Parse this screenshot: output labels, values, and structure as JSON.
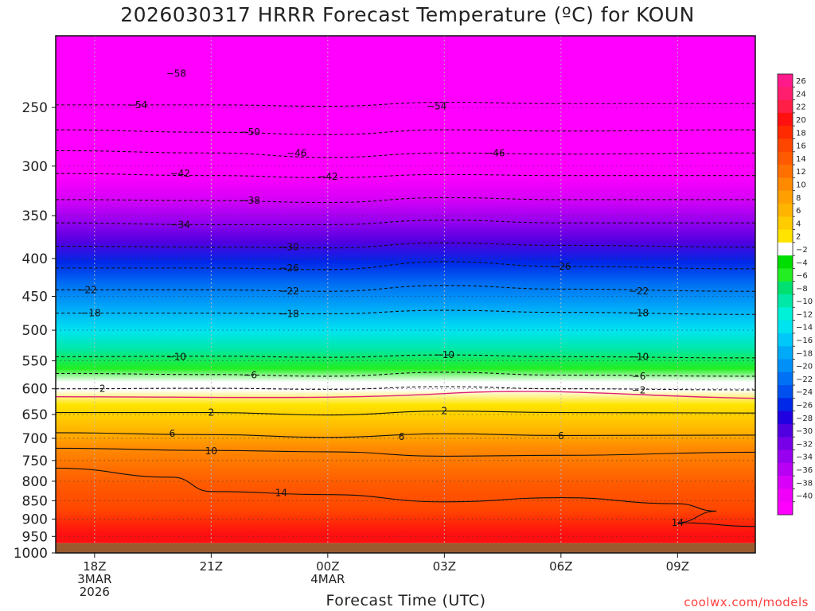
{
  "title": "2026030317 HRRR Forecast Temperature (ºC) for KOUN",
  "watermark": "coolwx.com/models",
  "colors": {
    "ground": "#9b5a2e",
    "freezing_line": "#e0207a"
  },
  "chart_data": {
    "type": "heatmap",
    "title": "2026030317 HRRR Forecast Temperature (ºC) for KOUN",
    "xlabel": "Forecast Time (UTC)",
    "ylabel": "",
    "y_scale": "log-pressure",
    "ylim": [
      1000,
      200
    ],
    "y_ticks": [
      250,
      300,
      350,
      400,
      450,
      500,
      550,
      600,
      650,
      700,
      750,
      800,
      850,
      900,
      950,
      1000
    ],
    "x_ticks": [
      {
        "hour": 0,
        "lines": [
          "18Z",
          "3MAR",
          "2026"
        ]
      },
      {
        "hour": 3,
        "lines": [
          "21Z"
        ]
      },
      {
        "hour": 6,
        "lines": [
          "00Z",
          "4MAR"
        ]
      },
      {
        "hour": 9,
        "lines": [
          "03Z"
        ]
      },
      {
        "hour": 12,
        "lines": [
          "06Z"
        ]
      },
      {
        "hour": 15,
        "lines": [
          "09Z"
        ]
      }
    ],
    "xlim": [
      -1,
      17
    ],
    "surface_pressure": 970,
    "colorbar": {
      "labels": [
        26,
        24,
        22,
        20,
        18,
        16,
        14,
        12,
        10,
        8,
        6,
        4,
        2,
        -2,
        -4,
        -6,
        -8,
        -10,
        -12,
        -14,
        -16,
        -18,
        -20,
        -22,
        -24,
        -26,
        -28,
        -30,
        -32,
        -34,
        -36,
        -38,
        -40
      ],
      "colors": [
        "#ff1a8c",
        "#ff1e6e",
        "#ff1e46",
        "#ff1010",
        "#ff2a00",
        "#ff4600",
        "#ff5a00",
        "#ff7000",
        "#ff8a00",
        "#ffa000",
        "#ffb400",
        "#ffcc00",
        "#ffe400",
        "#ffffff",
        "#00dd00",
        "#22ee22",
        "#00e070",
        "#00e8a8",
        "#00f0d8",
        "#00e4f0",
        "#00c8f8",
        "#00aaf8",
        "#0090f8",
        "#0070f4",
        "#0050f0",
        "#0028e8",
        "#2000e0",
        "#5000e0",
        "#7800e8",
        "#9800f0",
        "#b800f4",
        "#d800f8",
        "#f000f8",
        "#ff00ff"
      ]
    },
    "profile": [
      {
        "p": 200,
        "t": -60
      },
      {
        "p": 230,
        "t": -57
      },
      {
        "p": 250,
        "t": -54
      },
      {
        "p": 275,
        "t": -50
      },
      {
        "p": 290,
        "t": -46
      },
      {
        "p": 310,
        "t": -42
      },
      {
        "p": 335,
        "t": -38
      },
      {
        "p": 360,
        "t": -34
      },
      {
        "p": 385,
        "t": -30
      },
      {
        "p": 410,
        "t": -26
      },
      {
        "p": 440,
        "t": -22
      },
      {
        "p": 475,
        "t": -18
      },
      {
        "p": 510,
        "t": -14
      },
      {
        "p": 540,
        "t": -10
      },
      {
        "p": 575,
        "t": -6
      },
      {
        "p": 600,
        "t": -2
      },
      {
        "p": 615,
        "t": 0
      },
      {
        "p": 645,
        "t": 2
      },
      {
        "p": 700,
        "t": 6
      },
      {
        "p": 740,
        "t": 10
      },
      {
        "p": 830,
        "t": 14
      },
      {
        "p": 900,
        "t": 17
      },
      {
        "p": 970,
        "t": 20
      }
    ],
    "contours": [
      {
        "value": -54,
        "points": [
          [
            -1,
            248
          ],
          [
            3,
            248
          ],
          [
            6,
            249
          ],
          [
            9,
            246
          ],
          [
            12,
            247
          ],
          [
            17,
            247
          ]
        ]
      },
      {
        "value": -50,
        "points": [
          [
            -1,
            268
          ],
          [
            3,
            270
          ],
          [
            6,
            272
          ],
          [
            9,
            268
          ],
          [
            12,
            269
          ],
          [
            17,
            268
          ]
        ]
      },
      {
        "value": -46,
        "points": [
          [
            -1,
            286
          ],
          [
            3,
            288
          ],
          [
            6,
            292
          ],
          [
            9,
            288
          ],
          [
            12,
            289
          ],
          [
            17,
            288
          ]
        ]
      },
      {
        "value": -42,
        "points": [
          [
            -1,
            307
          ],
          [
            3,
            309
          ],
          [
            6,
            311
          ],
          [
            9,
            308
          ],
          [
            12,
            309
          ],
          [
            17,
            309
          ]
        ]
      },
      {
        "value": -38,
        "points": [
          [
            -1,
            333
          ],
          [
            3,
            334
          ],
          [
            6,
            336
          ],
          [
            9,
            331
          ],
          [
            12,
            333
          ],
          [
            17,
            333
          ]
        ]
      },
      {
        "value": -34,
        "points": [
          [
            -1,
            358
          ],
          [
            3,
            360
          ],
          [
            6,
            360
          ],
          [
            9,
            355
          ],
          [
            12,
            358
          ],
          [
            17,
            358
          ]
        ]
      },
      {
        "value": -30,
        "points": [
          [
            -1,
            385
          ],
          [
            3,
            386
          ],
          [
            6,
            387
          ],
          [
            9,
            381
          ],
          [
            12,
            384
          ],
          [
            17,
            386
          ]
        ]
      },
      {
        "value": -26,
        "points": [
          [
            -1,
            412
          ],
          [
            3,
            412
          ],
          [
            6,
            414
          ],
          [
            9,
            404
          ],
          [
            12,
            410
          ],
          [
            17,
            413
          ]
        ]
      },
      {
        "value": -22,
        "points": [
          [
            -1,
            441
          ],
          [
            3,
            441
          ],
          [
            6,
            443
          ],
          [
            9,
            435
          ],
          [
            12,
            440
          ],
          [
            17,
            443
          ]
        ]
      },
      {
        "value": -18,
        "points": [
          [
            -1,
            474
          ],
          [
            3,
            474
          ],
          [
            6,
            475
          ],
          [
            9,
            470
          ],
          [
            12,
            473
          ],
          [
            17,
            476
          ]
        ]
      },
      {
        "value": -10,
        "points": [
          [
            -1,
            543
          ],
          [
            3,
            542
          ],
          [
            6,
            544
          ],
          [
            9,
            540
          ],
          [
            12,
            543
          ],
          [
            17,
            545
          ]
        ]
      },
      {
        "value": -6,
        "points": [
          [
            -1,
            572
          ],
          [
            3,
            574
          ],
          [
            6,
            577
          ],
          [
            9,
            570
          ],
          [
            12,
            575
          ],
          [
            17,
            577
          ]
        ]
      },
      {
        "value": -2,
        "points": [
          [
            -1,
            600
          ],
          [
            3,
            599
          ],
          [
            6,
            601
          ],
          [
            9,
            596
          ],
          [
            12,
            600
          ],
          [
            17,
            602
          ]
        ]
      },
      {
        "value": 2,
        "points": [
          [
            -1,
            646
          ],
          [
            3,
            646
          ],
          [
            6,
            651
          ],
          [
            9,
            643
          ],
          [
            12,
            646
          ],
          [
            17,
            647
          ]
        ]
      },
      {
        "value": 6,
        "points": [
          [
            -1,
            688
          ],
          [
            3,
            692
          ],
          [
            6,
            698
          ],
          [
            9,
            690
          ],
          [
            12,
            694
          ],
          [
            17,
            693
          ]
        ]
      },
      {
        "value": 10,
        "points": [
          [
            -1,
            722
          ],
          [
            3,
            727
          ],
          [
            6,
            730
          ],
          [
            9,
            740
          ],
          [
            12,
            738
          ],
          [
            17,
            731
          ]
        ]
      },
      {
        "value": 14,
        "points": [
          [
            -1,
            768
          ],
          [
            2,
            790
          ],
          [
            3,
            826
          ],
          [
            6,
            834
          ],
          [
            9,
            853
          ],
          [
            12,
            842
          ],
          [
            15,
            858
          ],
          [
            16,
            878
          ],
          [
            15,
            910
          ],
          [
            17,
            921
          ]
        ]
      }
    ],
    "contour_labels": [
      {
        "value": -58,
        "hour": 2.1,
        "p": 225
      },
      {
        "value": -54,
        "hour": 1.1,
        "p": 248
      },
      {
        "value": -54,
        "hour": 8.8,
        "p": 249
      },
      {
        "value": -50,
        "hour": 4.0,
        "p": 270
      },
      {
        "value": -46,
        "hour": 5.2,
        "p": 288
      },
      {
        "value": -46,
        "hour": 10.3,
        "p": 288
      },
      {
        "value": -42,
        "hour": 2.2,
        "p": 307
      },
      {
        "value": -42,
        "hour": 6.0,
        "p": 310
      },
      {
        "value": -38,
        "hour": 4.0,
        "p": 334
      },
      {
        "value": -34,
        "hour": 2.2,
        "p": 360
      },
      {
        "value": -30,
        "hour": 5.0,
        "p": 386
      },
      {
        "value": -26,
        "hour": 5.0,
        "p": 412
      },
      {
        "value": -26,
        "hour": 12.0,
        "p": 410
      },
      {
        "value": -22,
        "hour": -0.2,
        "p": 441
      },
      {
        "value": -22,
        "hour": 5.0,
        "p": 443
      },
      {
        "value": -22,
        "hour": 14.0,
        "p": 443
      },
      {
        "value": -18,
        "hour": -0.1,
        "p": 474
      },
      {
        "value": -18,
        "hour": 5.0,
        "p": 475
      },
      {
        "value": -18,
        "hour": 14.0,
        "p": 474
      },
      {
        "value": -10,
        "hour": 2.1,
        "p": 543
      },
      {
        "value": -10,
        "hour": 9.0,
        "p": 540
      },
      {
        "value": -10,
        "hour": 14.0,
        "p": 543
      },
      {
        "value": -6,
        "hour": 4.0,
        "p": 575
      },
      {
        "value": -6,
        "hour": 14.0,
        "p": 577
      },
      {
        "value": -2,
        "hour": 0.1,
        "p": 600
      },
      {
        "value": -2,
        "hour": 14.0,
        "p": 603
      },
      {
        "value": 2,
        "hour": 3.0,
        "p": 646
      },
      {
        "value": 2,
        "hour": 9.0,
        "p": 643
      },
      {
        "value": 6,
        "hour": 2.0,
        "p": 690
      },
      {
        "value": 6,
        "hour": 7.9,
        "p": 697
      },
      {
        "value": 6,
        "hour": 12.0,
        "p": 695
      },
      {
        "value": 10,
        "hour": 3.0,
        "p": 728
      },
      {
        "value": 14,
        "hour": 4.8,
        "p": 830
      },
      {
        "value": 14,
        "hour": 15.0,
        "p": 910
      }
    ]
  }
}
